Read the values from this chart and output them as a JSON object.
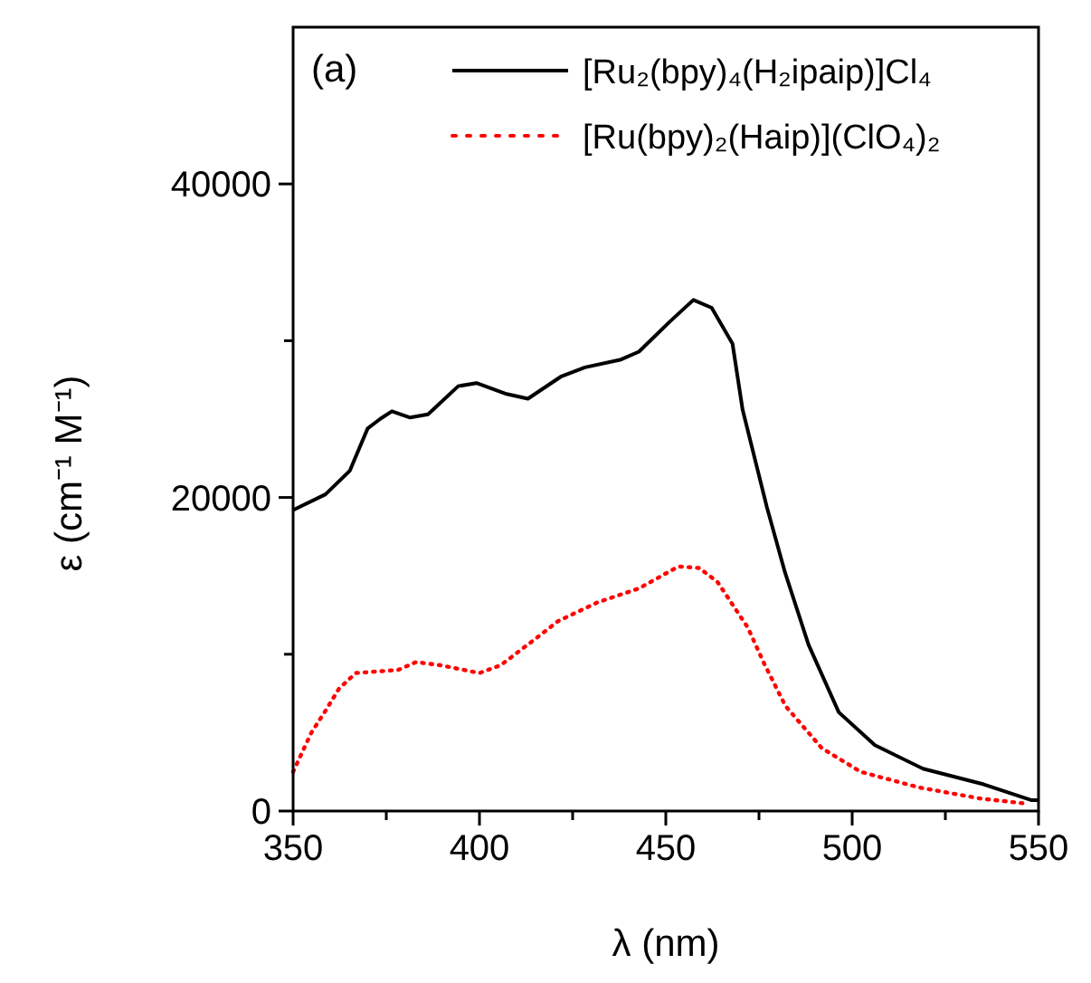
{
  "chart_data": {
    "type": "line",
    "xlabel": "λ (nm)",
    "ylabel": "ε (cm⁻¹ M⁻¹)",
    "annotations": [
      "(a)"
    ],
    "xlim": [
      350,
      550
    ],
    "ylim": [
      0,
      50000
    ],
    "xticks": [
      350,
      {
        "value": 375,
        "label": null
      },
      400,
      {
        "value": 425,
        "label": null
      },
      450,
      {
        "value": 475,
        "label": null
      },
      500,
      {
        "value": 525,
        "label": null
      },
      550
    ],
    "yticks": [
      0,
      {
        "value": 10000,
        "label": null
      },
      20000,
      {
        "value": 30000,
        "label": null
      },
      40000
    ],
    "legend": "top right",
    "grid": false,
    "series": [
      {
        "name": "[Ru₂(bpy)₄(H₂ipaip)]Cl₄",
        "color": "#000000",
        "line_style": "solid",
        "x": [
          350,
          358.7,
          365.2,
          370,
          373.3,
          376.5,
          381.4,
          386.2,
          394.3,
          399.2,
          407.3,
          413,
          421.8,
          428.3,
          438,
          442.8,
          451,
          457.4,
          462.3,
          467.9,
          470.6,
          477.1,
          482,
          488.3,
          496.4,
          506.1,
          519,
          535.3,
          548,
          550
        ],
        "values": [
          19200,
          20200,
          21700,
          24400,
          25000,
          25500,
          25100,
          25300,
          27100,
          27300,
          26600,
          26300,
          27700,
          28300,
          28800,
          29300,
          31200,
          32600,
          32100,
          29800,
          25600,
          19400,
          15200,
          10600,
          6300,
          4200,
          2700,
          1700,
          700,
          700
        ]
      },
      {
        "name": "[Ru(bpy)₂(Haip)](ClO₄)₂",
        "color": "#ff0000",
        "line_style": "dotted",
        "x": [
          350,
          354.9,
          358.7,
          362.3,
          366.8,
          378.2,
          383,
          389.5,
          400,
          405.7,
          416.2,
          421,
          431.6,
          442.8,
          453.4,
          459,
          463.9,
          472,
          476.4,
          482.1,
          491.9,
          502.3,
          518,
          534.3,
          545.7
        ],
        "values": [
          2500,
          5000,
          6400,
          7800,
          8800,
          9000,
          9500,
          9300,
          8800,
          9300,
          11200,
          12100,
          13300,
          14200,
          15600,
          15500,
          14600,
          11700,
          9400,
          6700,
          4000,
          2500,
          1500,
          800,
          500
        ]
      }
    ]
  }
}
